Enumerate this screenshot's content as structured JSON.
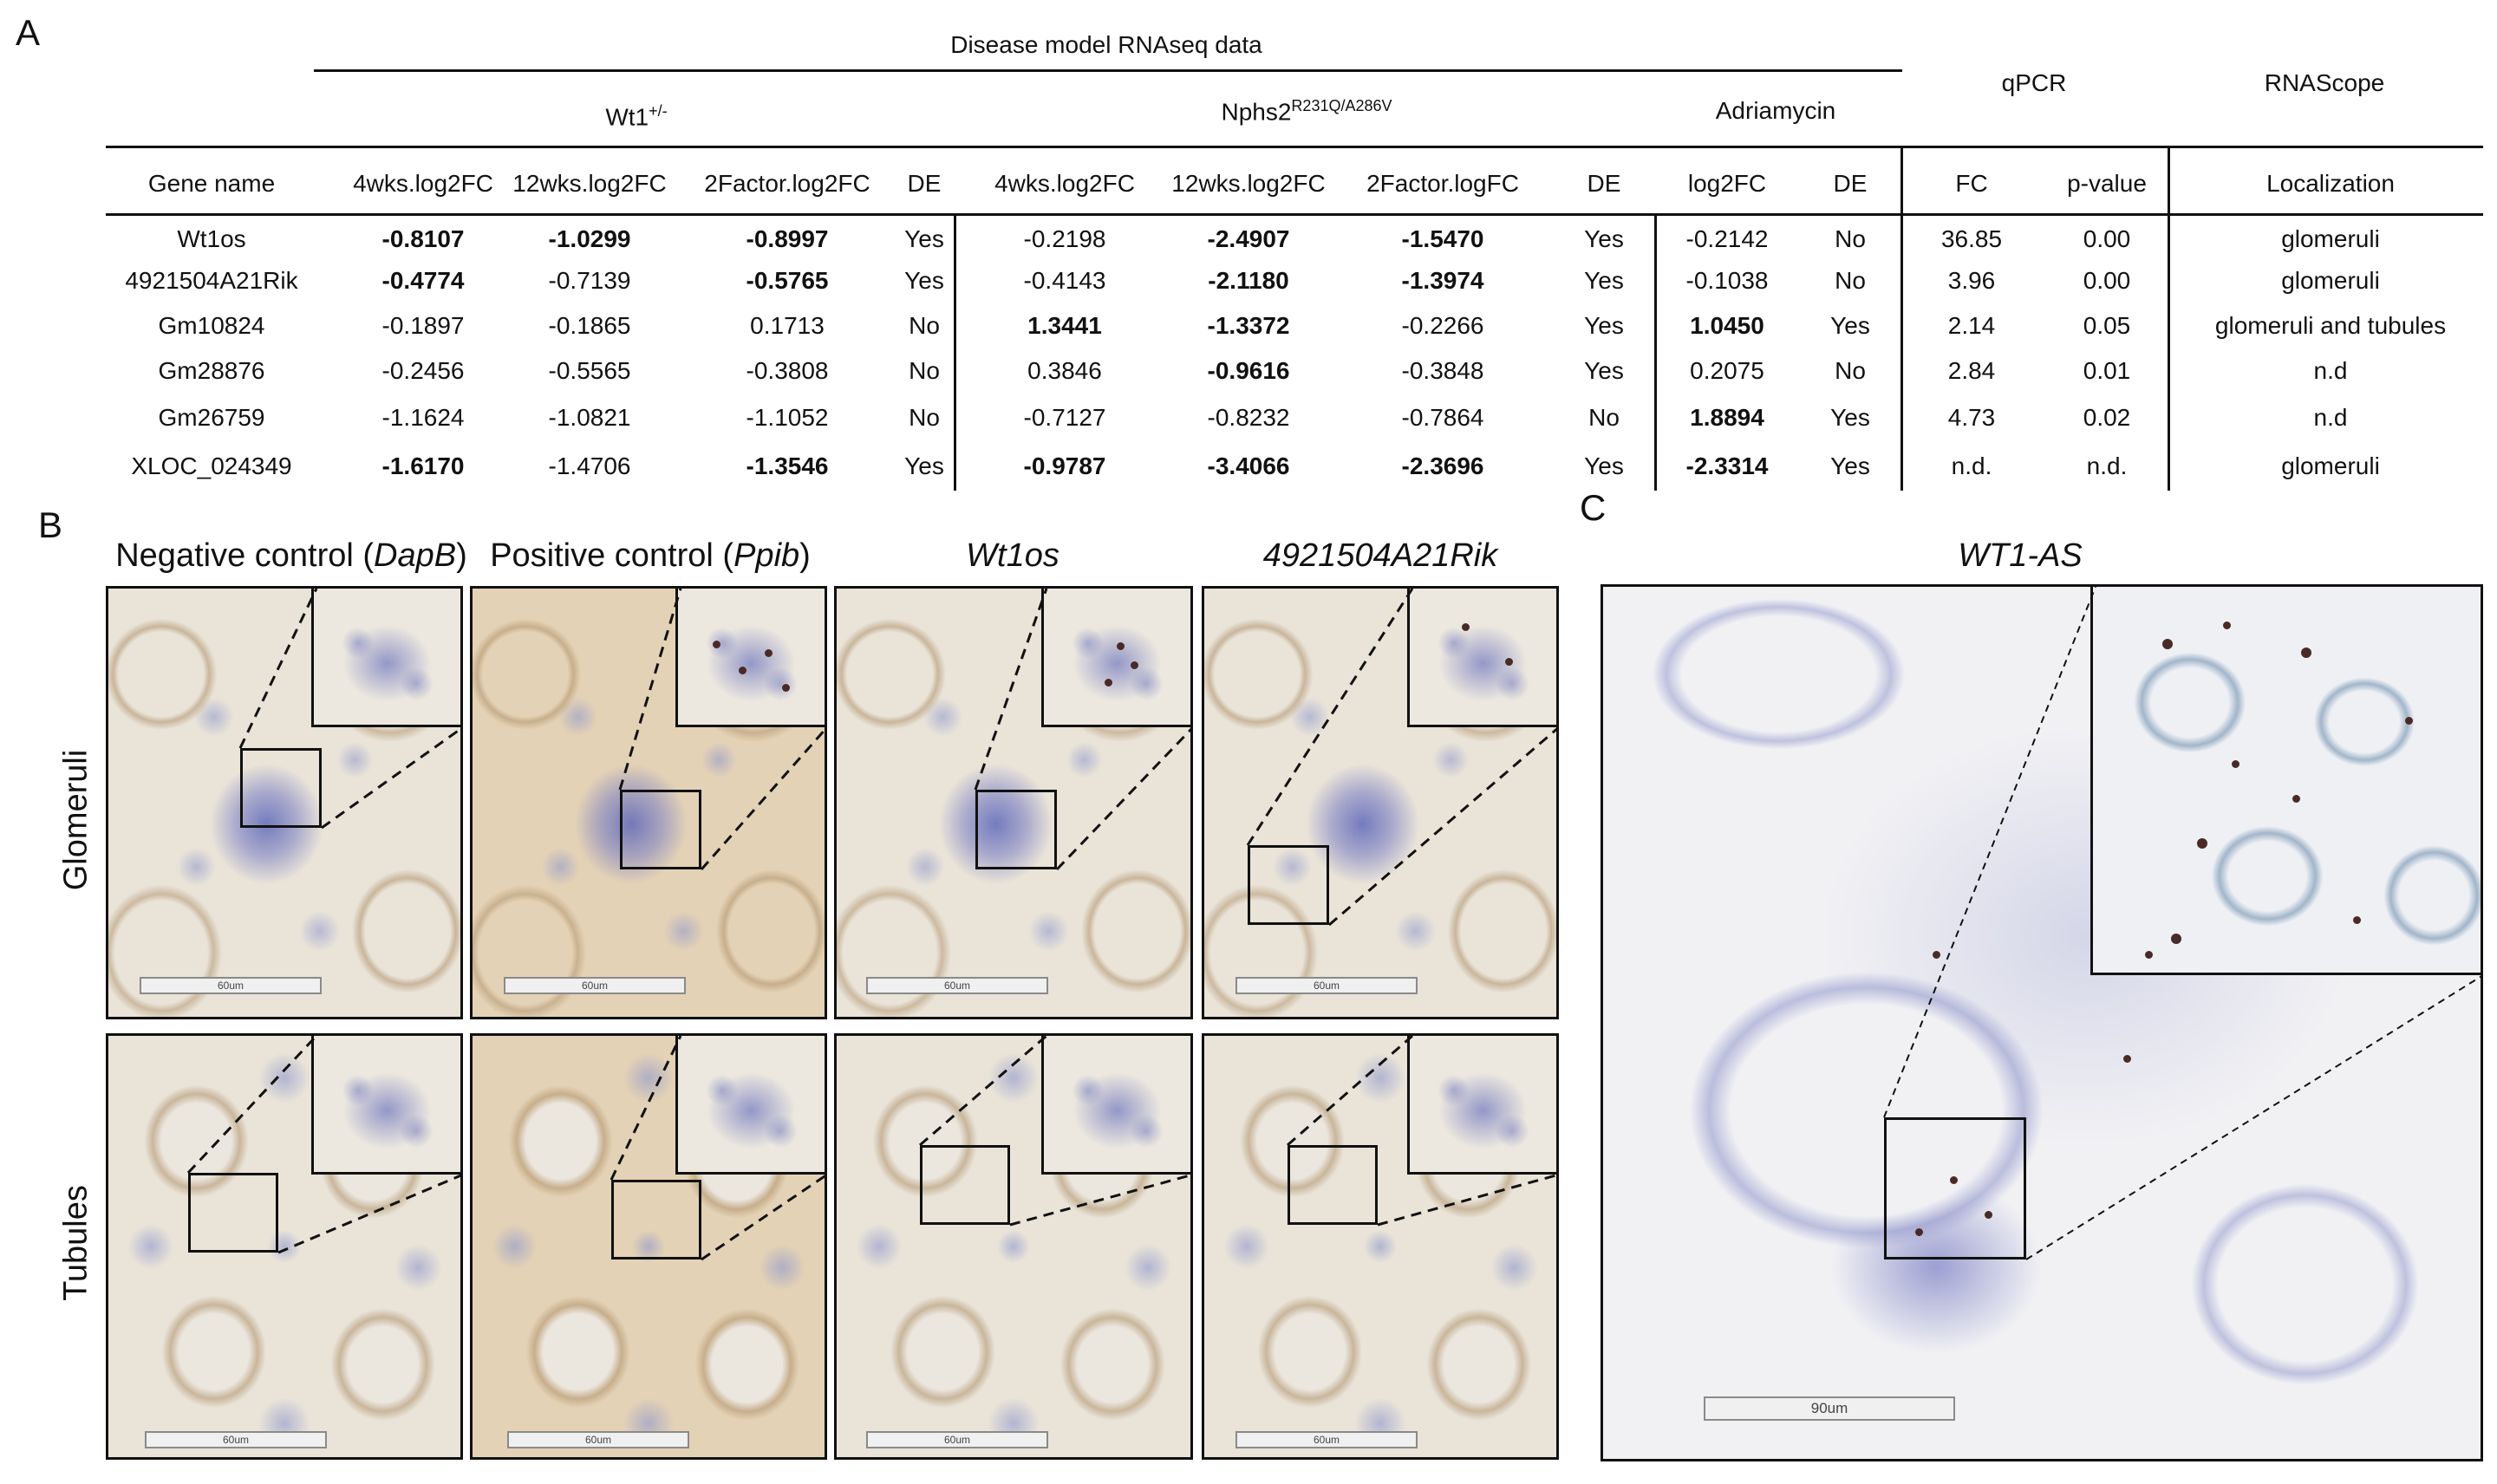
{
  "panels": {
    "a": "A",
    "b": "B",
    "c": "C"
  },
  "table": {
    "group_header": "Disease model RNAseq data",
    "models": {
      "wt1": {
        "base": "Wt1",
        "sup": "+/-"
      },
      "nphs2": {
        "base": "Nphs2",
        "sup": "R231Q/A286V"
      },
      "adriamycin": "Adriamycin"
    },
    "qpcr": "qPCR",
    "rnascope": "RNAScope",
    "columns": [
      "Gene name",
      "4wks.log2FC",
      "12wks.log2FC",
      "2Factor.log2FC",
      "DE",
      "4wks.log2FC",
      "12wks.log2FC",
      "2Factor.logFC",
      "DE",
      "log2FC",
      "DE",
      "FC",
      "p-value",
      "Localization"
    ],
    "rows": [
      {
        "gene": "Wt1os",
        "w4": "-0.8107",
        "w12": "-1.0299",
        "w2f": "-0.8997",
        "wde": "Yes",
        "n4": "-0.2198",
        "n12": "-2.4907",
        "n2f": "-1.5470",
        "nde": "Yes",
        "alfc": "-0.2142",
        "ade": "No",
        "fc": "36.85",
        "p": "0.00",
        "loc": "glomeruli"
      },
      {
        "gene": "4921504A21Rik",
        "w4": "-0.4774",
        "w12": "-0.7139",
        "w2f": "-0.5765",
        "wde": "Yes",
        "n4": "-0.4143",
        "n12": "-2.1180",
        "n2f": "-1.3974",
        "nde": "Yes",
        "alfc": "-0.1038",
        "ade": "No",
        "fc": "3.96",
        "p": "0.00",
        "loc": "glomeruli"
      },
      {
        "gene": "Gm10824",
        "w4": "-0.1897",
        "w12": "-0.1865",
        "w2f": "0.1713",
        "wde": "No",
        "n4": "1.3441",
        "n12": "-1.3372",
        "n2f": "-0.2266",
        "nde": "Yes",
        "alfc": "1.0450",
        "ade": "Yes",
        "fc": "2.14",
        "p": "0.05",
        "loc": "glomeruli and tubules"
      },
      {
        "gene": "Gm28876",
        "w4": "-0.2456",
        "w12": "-0.5565",
        "w2f": "-0.3808",
        "wde": "No",
        "n4": "0.3846",
        "n12": "-0.9616",
        "n2f": "-0.3848",
        "nde": "Yes",
        "alfc": "0.2075",
        "ade": "No",
        "fc": "2.84",
        "p": "0.01",
        "loc": "n.d"
      },
      {
        "gene": "Gm26759",
        "w4": "-1.1624",
        "w12": "-1.0821",
        "w2f": "-1.1052",
        "wde": "No",
        "n4": "-0.7127",
        "n12": "-0.8232",
        "n2f": "-0.7864",
        "nde": "No",
        "alfc": "1.8894",
        "ade": "Yes",
        "fc": "4.73",
        "p": "0.02",
        "loc": "n.d"
      },
      {
        "gene": "XLOC_024349",
        "w4": "-1.6170",
        "w12": "-1.4706",
        "w2f": "-1.3546",
        "wde": "Yes",
        "n4": "-0.9787",
        "n12": "-3.4066",
        "n2f": "-2.3696",
        "nde": "Yes",
        "alfc": "-2.3314",
        "ade": "Yes",
        "fc": "n.d.",
        "p": "n.d.",
        "loc": "glomeruli"
      }
    ]
  },
  "panel_b": {
    "col_titles": [
      {
        "text": "Negative control (",
        "gene": "DapB",
        "close": ")"
      },
      {
        "text": "Positive control (",
        "gene": "Ppib",
        "close": ")"
      },
      {
        "gene": "Wt1os"
      },
      {
        "gene": "4921504A21Rik"
      }
    ],
    "row_labels": [
      "Glomeruli",
      "Tubules"
    ],
    "scale": "60um"
  },
  "panel_c": {
    "title": "WT1-AS",
    "scale": "90um"
  },
  "colors": {
    "line": "#111111",
    "hematoxylin": "#6e76be",
    "signal": "#4a2a26",
    "dab": "#b0916a"
  }
}
